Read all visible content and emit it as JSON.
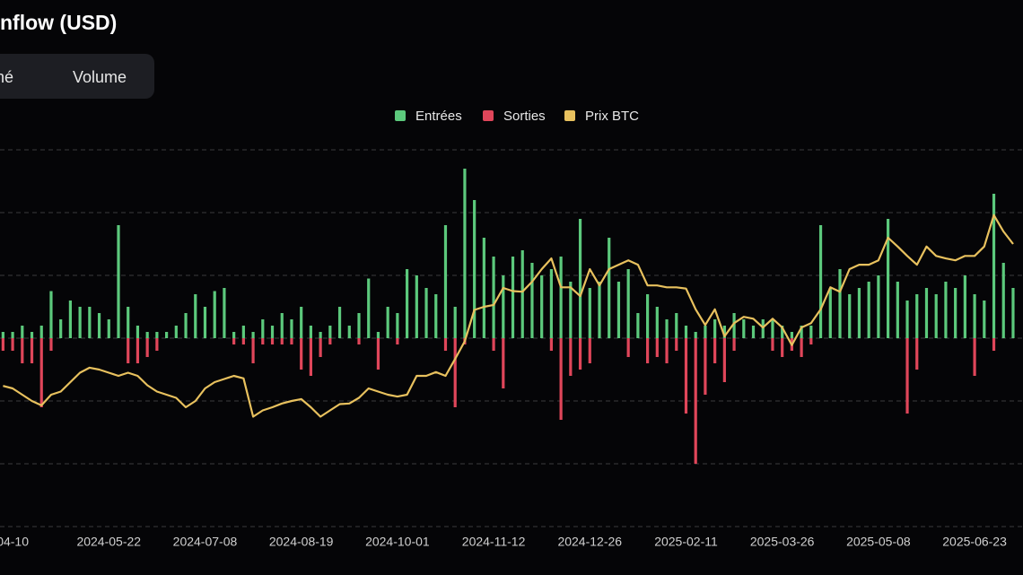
{
  "tabs": [
    "rché",
    "Volume"
  ],
  "chart_data": {
    "type": "bar",
    "title": "nflow (USD)",
    "categories": [
      null,
      "04-10",
      null,
      null,
      null,
      null,
      null,
      null,
      null,
      null,
      null,
      "2024-05-22",
      null,
      null,
      null,
      null,
      null,
      null,
      null,
      null,
      null,
      "2024-07-08",
      null,
      null,
      null,
      null,
      null,
      null,
      null,
      null,
      null,
      "2024-08-19",
      null,
      null,
      null,
      null,
      null,
      null,
      null,
      null,
      null,
      "2024-10-01",
      null,
      null,
      null,
      null,
      null,
      null,
      null,
      null,
      null,
      "2024-11-12",
      null,
      null,
      null,
      null,
      null,
      null,
      null,
      null,
      null,
      "2024-12-26",
      null,
      null,
      null,
      null,
      null,
      null,
      null,
      null,
      null,
      "2025-02-11",
      null,
      null,
      null,
      null,
      null,
      null,
      null,
      null,
      null,
      "2025-03-26",
      null,
      null,
      null,
      null,
      null,
      null,
      null,
      null,
      null,
      "2025-05-08",
      null,
      null,
      null,
      null,
      null,
      null,
      null,
      null,
      null,
      "2025-06-23",
      null,
      null,
      null,
      null
    ],
    "ylim": [
      -3,
      3
    ],
    "yticks": [
      -3,
      -2,
      -1,
      0,
      1,
      2,
      3
    ],
    "grid": true,
    "series": [
      {
        "name": "Entrées",
        "color": "#5cc97c",
        "type": "bar",
        "values": [
          0.1,
          0.1,
          0.2,
          0.1,
          0.2,
          0.75,
          0.3,
          0.6,
          0.5,
          0.5,
          0.4,
          0.3,
          1.8,
          0.5,
          0.2,
          0.1,
          0.1,
          0.1,
          0.2,
          0.4,
          0.7,
          0.5,
          0.75,
          0.8,
          0.1,
          0.2,
          0.1,
          0.3,
          0.2,
          0.4,
          0.3,
          0.5,
          0.2,
          0.1,
          0.2,
          0.5,
          0.2,
          0.4,
          0.95,
          0.1,
          0.5,
          0.4,
          1.1,
          1.0,
          0.8,
          0.7,
          1.8,
          0.5,
          2.7,
          2.2,
          1.6,
          1.3,
          1.0,
          1.3,
          1.4,
          1.2,
          1.0,
          1.1,
          1.3,
          0.9,
          1.9,
          0.8,
          0.9,
          1.6,
          0.9,
          1.1,
          0.4,
          0.7,
          0.5,
          0.3,
          0.4,
          0.2,
          0.1,
          0.2,
          0.3,
          0.2,
          0.4,
          0.3,
          0.2,
          0.3,
          0.3,
          0.2,
          0.1,
          0.2,
          0.2,
          1.8,
          0.8,
          1.1,
          0.7,
          0.8,
          0.9,
          1.0,
          1.9,
          0.9,
          0.6,
          0.7,
          0.8,
          0.7,
          0.9,
          0.8,
          1.0,
          0.7,
          0.6,
          2.3,
          1.2,
          0.8
        ]
      },
      {
        "name": "Sorties",
        "color": "#e0465a",
        "type": "bar",
        "values": [
          -0.2,
          -0.2,
          -0.4,
          -0.4,
          -1.1,
          -0.2,
          0,
          0,
          0,
          0,
          0,
          0,
          0,
          -0.4,
          -0.4,
          -0.3,
          -0.2,
          0,
          0,
          0,
          0,
          0,
          0,
          0,
          -0.1,
          -0.1,
          -0.4,
          -0.1,
          -0.1,
          -0.1,
          -0.1,
          -0.5,
          -0.6,
          -0.3,
          -0.1,
          0,
          0,
          -0.1,
          0,
          -0.5,
          0,
          -0.1,
          0,
          0,
          0,
          0,
          -0.2,
          -1.1,
          -0.1,
          0,
          0,
          -0.2,
          -0.8,
          0,
          0,
          0,
          0,
          -0.2,
          -1.3,
          -0.6,
          -0.5,
          -0.4,
          0,
          0,
          0,
          -0.3,
          0,
          -0.4,
          -0.3,
          -0.4,
          -0.2,
          -1.2,
          -2.0,
          -0.9,
          -0.4,
          -0.7,
          -0.2,
          0,
          0,
          0,
          -0.2,
          -0.3,
          -0.2,
          -0.3,
          -0.1,
          0,
          0,
          0,
          0,
          0,
          0,
          0,
          0,
          0,
          -1.2,
          -0.5,
          0,
          0,
          0,
          0,
          0,
          -0.6,
          0,
          -0.2,
          0,
          0
        ]
      },
      {
        "name": "Prix BTC",
        "color": "#e8c15e",
        "type": "line",
        "values": [
          -0.76,
          -0.8,
          -0.9,
          -1.0,
          -1.07,
          -0.9,
          -0.85,
          -0.7,
          -0.55,
          -0.47,
          -0.5,
          -0.55,
          -0.6,
          -0.55,
          -0.6,
          -0.75,
          -0.85,
          -0.9,
          -0.95,
          -1.1,
          -1.0,
          -0.8,
          -0.7,
          -0.65,
          -0.6,
          -0.64,
          -1.25,
          -1.15,
          -1.1,
          -1.04,
          -1.0,
          -0.97,
          -1.1,
          -1.25,
          -1.15,
          -1.05,
          -1.04,
          -0.95,
          -0.8,
          -0.85,
          -0.9,
          -0.93,
          -0.9,
          -0.6,
          -0.6,
          -0.54,
          -0.6,
          -0.33,
          -0.05,
          0.45,
          0.5,
          0.53,
          0.8,
          0.75,
          0.74,
          0.9,
          1.1,
          1.27,
          0.81,
          0.81,
          0.67,
          1.1,
          0.84,
          1.1,
          1.17,
          1.24,
          1.17,
          0.84,
          0.84,
          0.81,
          0.81,
          0.79,
          0.46,
          0.21,
          0.46,
          0.03,
          0.24,
          0.34,
          0.31,
          0.17,
          0.31,
          0.17,
          -0.11,
          0.17,
          0.24,
          0.46,
          0.81,
          0.74,
          1.1,
          1.17,
          1.17,
          1.24,
          1.6,
          1.46,
          1.31,
          1.17,
          1.46,
          1.31,
          1.27,
          1.24,
          1.31,
          1.31,
          1.46,
          1.96,
          1.7,
          1.5
        ]
      }
    ]
  }
}
